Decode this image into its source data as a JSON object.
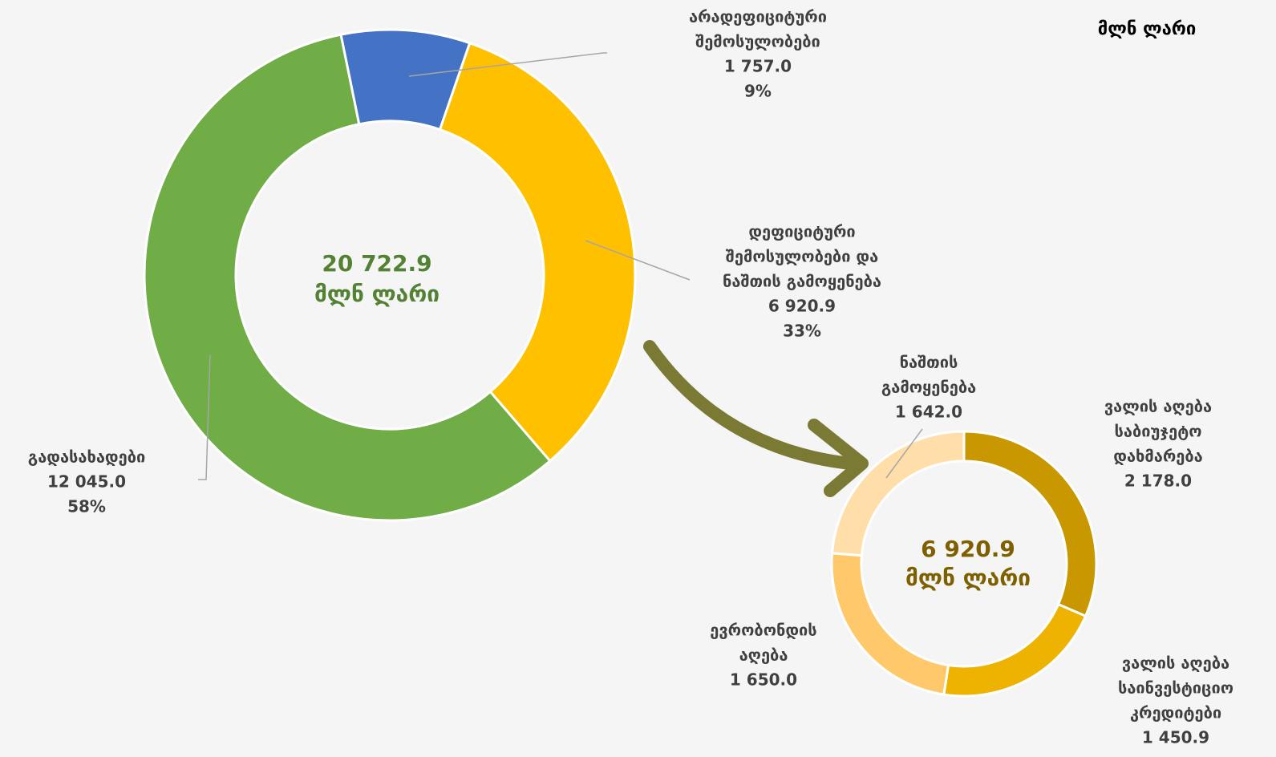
{
  "unit_label": "მლნ ლარი",
  "chart_data": [
    {
      "type": "donut",
      "categories": [
        [
          "არადეფიციტური",
          "შემოსულობები"
        ],
        [
          "დეფიციტური",
          "შემოსულობები და",
          "ნაშთის გამოყენება"
        ],
        [
          "გადასახადები"
        ]
      ],
      "values": [
        1757.0,
        6920.9,
        12045.0
      ],
      "value_labels": [
        "1 757.0",
        "6 920.9",
        "12 045.0"
      ],
      "percents": [
        9,
        33,
        58
      ],
      "percent_labels": [
        "9%",
        "33%",
        "58%"
      ],
      "colors": [
        "#4472c4",
        "#ffc000",
        "#70ad47"
      ],
      "total": 20722.9,
      "total_label": "20 722.9",
      "total_unit": "მლნ ლარი"
    },
    {
      "type": "donut",
      "categories": [
        [
          "ვალის აღება",
          "საბიუჯეტო",
          "დახმარება"
        ],
        [
          "ვალის აღება",
          "საინვესტიციო",
          "კრედიტები"
        ],
        [
          "ევრობონდის",
          "აღება"
        ],
        [
          "ნაშთის",
          "გამოყენება"
        ]
      ],
      "values": [
        2178.0,
        1450.9,
        1650.0,
        1642.0
      ],
      "value_labels": [
        "2 178.0",
        "1 450.9",
        "1 650.0",
        "1 642.0"
      ],
      "colors": [
        "#c99700",
        "#eeb200",
        "#ffc96b",
        "#ffdeaa"
      ],
      "total": 6920.9,
      "total_label": "6 920.9",
      "total_unit": "მლნ ლარი"
    }
  ]
}
